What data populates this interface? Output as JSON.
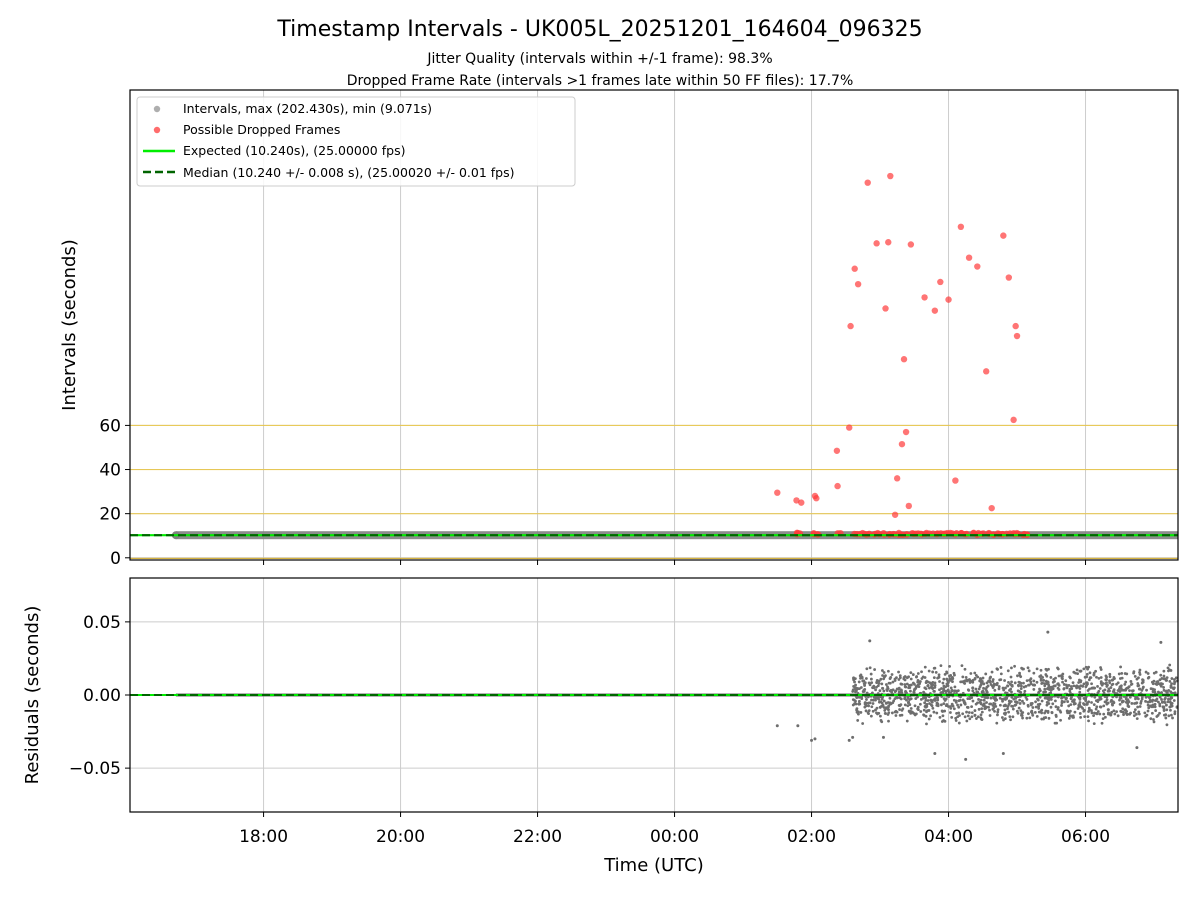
{
  "chart_data": [
    {
      "type": "scatter",
      "title": "Timestamp Intervals - UK005L_20251201_164604_096325",
      "subtitle_lines": [
        "Jitter Quality (intervals within +/-1 frame): 98.3%",
        "Dropped Frame Rate (intervals >1 frames late within 50 FF files): 17.7%"
      ],
      "ylabel": "Intervals (seconds)",
      "xlabel": "",
      "xlim_hours": [
        16.05,
        31.35
      ],
      "ylim": [
        -1,
        212
      ],
      "yticks": [
        0,
        20,
        40,
        60
      ],
      "ytick_labels": [
        "0",
        "20",
        "40",
        "60"
      ],
      "reference_lines": [
        20,
        40,
        60
      ],
      "reference_line_color": "#f5c518",
      "grid": true,
      "legend": {
        "placement": "top-left",
        "entries": [
          {
            "label": "Intervals, max (202.430s), min (9.071s)",
            "marker": "circle",
            "color": "#9a9a9a"
          },
          {
            "label": "Possible Dropped Frames",
            "marker": "circle",
            "color": "#ff3b3b"
          },
          {
            "label": "Expected (10.240s), (25.00000 fps)",
            "marker": "line-solid",
            "color": "#00ee00"
          },
          {
            "label": "Median (10.240 +/- 0.008 s), (25.00020 +/- 0.01 fps)",
            "marker": "line-dashed",
            "color": "#006400"
          }
        ]
      },
      "expected_interval": 10.24,
      "median_interval": 10.24,
      "interval_band": {
        "start_hour": 16.72,
        "end_hour": 31.35,
        "value": 10.24
      },
      "dropped_frames": {
        "x_hours": [
          25.5,
          25.78,
          25.85,
          26.05,
          26.07,
          26.37,
          26.38,
          26.55,
          26.57,
          26.63,
          26.68,
          26.82,
          26.95,
          27.08,
          27.12,
          27.15,
          27.22,
          27.25,
          27.32,
          27.35,
          27.38,
          27.42,
          27.45,
          27.65,
          27.8,
          27.88,
          28.0,
          28.1,
          28.18,
          28.3,
          28.42,
          28.55,
          28.63,
          28.8,
          28.88,
          28.95,
          28.98,
          29.0
        ],
        "y_intervals": [
          29.5,
          26,
          25,
          28,
          27,
          48.5,
          32.5,
          59,
          105,
          131,
          124,
          170,
          142.5,
          113,
          143,
          173,
          19.5,
          36,
          51.5,
          90,
          57,
          23.5,
          142,
          118,
          112,
          125,
          117,
          35,
          150,
          136,
          132,
          84.5,
          22.5,
          146,
          127,
          62.5,
          105,
          100.5
        ],
        "near_expected_x_hours": [
          25.78,
          25.82,
          26.02,
          26.08,
          26.4,
          26.65,
          26.72,
          26.78,
          26.85,
          26.9,
          26.97,
          27.05,
          27.13,
          27.2,
          27.28,
          27.33,
          27.4,
          27.47,
          27.55,
          27.6,
          27.68,
          27.75,
          27.82,
          27.9,
          27.97,
          28.05,
          28.12,
          28.2,
          28.27,
          28.35,
          28.43,
          28.5,
          28.58,
          28.65,
          28.73,
          28.8,
          28.87,
          28.95,
          29.02,
          29.1,
          29.17
        ]
      },
      "color_intervals": "#808080",
      "color_dropped": "#ff3b3b",
      "color_expected": "#00ee00",
      "color_median": "#006400"
    },
    {
      "type": "scatter",
      "title": "",
      "ylabel": "Residuals (seconds)",
      "xlabel": "Time (UTC)",
      "xlim_hours": [
        16.05,
        31.35
      ],
      "ylim": [
        -0.08,
        0.08
      ],
      "yticks": [
        0.05,
        0.0,
        -0.05
      ],
      "ytick_labels": [
        "0.05",
        "0.00",
        "−0.05"
      ],
      "xticks_hours": [
        18,
        20,
        22,
        24,
        26,
        28,
        30
      ],
      "xtick_labels": [
        "18:00",
        "20:00",
        "22:00",
        "00:00",
        "02:00",
        "04:00",
        "06:00"
      ],
      "grid": true,
      "residual_cloud": {
        "start_hour": 26.6,
        "end_hour": 31.35,
        "spread_early": 0.02,
        "spread_late": 0.022,
        "outlier_limit": 0.045
      },
      "sparse_points": {
        "x_hours": [
          25.5,
          25.8,
          26.0,
          26.05,
          26.55,
          26.6,
          26.85,
          27.05,
          27.8,
          28.25,
          28.8,
          29.45,
          30.75,
          31.1
        ],
        "y_residuals": [
          -0.021,
          -0.021,
          -0.031,
          -0.03,
          -0.031,
          -0.029,
          0.037,
          -0.029,
          -0.04,
          -0.044,
          -0.04,
          0.043,
          -0.036,
          0.036
        ]
      },
      "flat_residual_line": {
        "start_hour": 16.72,
        "end_hour": 31.35,
        "value": 0.0
      },
      "color_points": "#6e6e6e",
      "color_expected": "#00ee00",
      "color_median": "#006400"
    }
  ]
}
